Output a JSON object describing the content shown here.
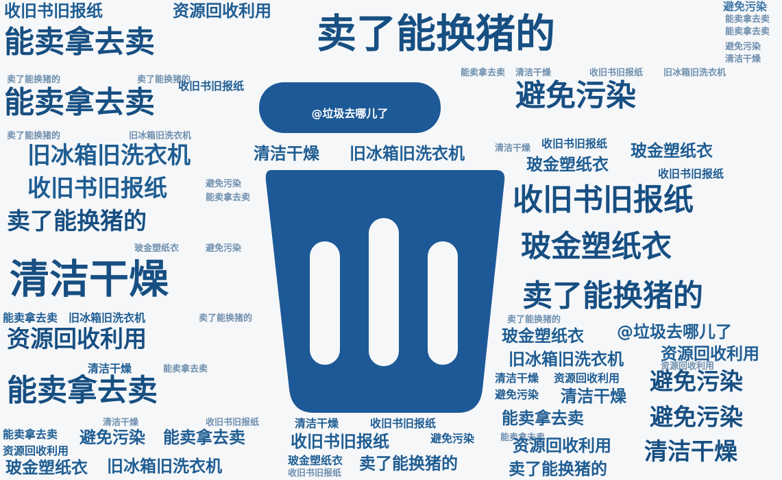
{
  "lid_label": "@垃圾去哪儿了",
  "words": {
    "w1": "收旧书旧报纸",
    "w2": "资源回收利用",
    "w3": "避免污染",
    "w4": "能卖拿去卖",
    "w5": "卖了能换猪的",
    "w6": "清洁干燥",
    "w7": "旧冰箱旧洗衣机",
    "w8": "玻金塑纸衣",
    "w9": "@垃圾去哪儿了"
  },
  "colors": {
    "primary": "#1d5996",
    "background": "#f6f7f9"
  },
  "icons": [
    "trash-bin-icon"
  ]
}
